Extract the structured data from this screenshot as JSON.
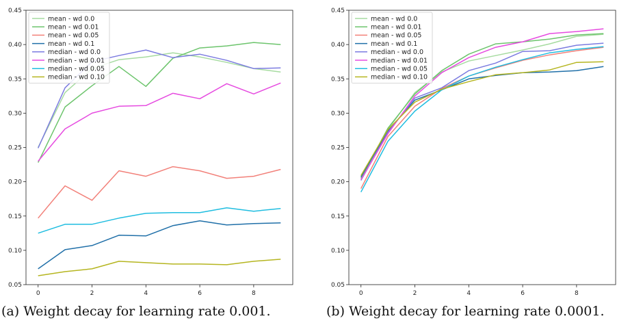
{
  "chart_data": [
    {
      "type": "line",
      "x": [
        0,
        1,
        2,
        3,
        4,
        5,
        6,
        7,
        8,
        9
      ],
      "ylim": [
        0.05,
        0.45
      ],
      "yticks": [
        "0.05",
        "0.10",
        "0.15",
        "0.20",
        "0.25",
        "0.30",
        "0.35",
        "0.40",
        "0.45"
      ],
      "xticks": [
        "0",
        "2",
        "4",
        "6",
        "8"
      ],
      "legend_position": "top-left",
      "series": [
        {
          "name": "mean - wd 0.0",
          "color": "#a6dba0",
          "values": [
            0.25,
            0.33,
            0.365,
            0.378,
            0.382,
            0.388,
            0.382,
            0.374,
            0.365,
            0.36
          ]
        },
        {
          "name": "mean - wd 0.01",
          "color": "#6cc46c",
          "values": [
            0.228,
            0.309,
            0.34,
            0.368,
            0.339,
            0.38,
            0.395,
            0.398,
            0.403,
            0.4
          ]
        },
        {
          "name": "mean - wd 0.05",
          "color": "#f28079",
          "values": [
            0.147,
            0.194,
            0.173,
            0.216,
            0.208,
            0.222,
            0.216,
            0.205,
            0.208,
            0.218
          ]
        },
        {
          "name": "mean - wd 0.1",
          "color": "#1f6fa8",
          "values": [
            0.073,
            0.101,
            0.107,
            0.122,
            0.121,
            0.136,
            0.143,
            0.137,
            0.139,
            0.14
          ]
        },
        {
          "name": "median - wd 0.0",
          "color": "#7b7be0",
          "values": [
            0.249,
            0.337,
            0.375,
            0.384,
            0.392,
            0.381,
            0.386,
            0.377,
            0.365,
            0.366
          ]
        },
        {
          "name": "median - wd 0.01",
          "color": "#e64be0",
          "values": [
            0.23,
            0.277,
            0.3,
            0.31,
            0.311,
            0.329,
            0.321,
            0.343,
            0.328,
            0.344
          ]
        },
        {
          "name": "median - wd 0.05",
          "color": "#1fbde0",
          "values": [
            0.125,
            0.138,
            0.138,
            0.147,
            0.154,
            0.155,
            0.155,
            0.162,
            0.157,
            0.161
          ]
        },
        {
          "name": "median - wd 0.10",
          "color": "#b5b51f",
          "values": [
            0.063,
            0.069,
            0.073,
            0.084,
            0.082,
            0.08,
            0.08,
            0.079,
            0.084,
            0.087
          ]
        }
      ],
      "caption": "(a) Weight decay for learning rate 0.001."
    },
    {
      "type": "line",
      "x": [
        0,
        1,
        2,
        3,
        4,
        5,
        6,
        7,
        8,
        9
      ],
      "ylim": [
        0.05,
        0.45
      ],
      "yticks": [
        "0.05",
        "0.10",
        "0.15",
        "0.20",
        "0.25",
        "0.30",
        "0.35",
        "0.40",
        "0.45"
      ],
      "xticks": [
        "0",
        "2",
        "4",
        "6",
        "8"
      ],
      "legend_position": "top-left",
      "series": [
        {
          "name": "mean - wd 0.0",
          "color": "#a6dba0",
          "values": [
            0.205,
            0.276,
            0.33,
            0.36,
            0.376,
            0.384,
            0.392,
            0.401,
            0.412,
            0.415
          ]
        },
        {
          "name": "mean - wd 0.01",
          "color": "#6cc46c",
          "values": [
            0.205,
            0.278,
            0.328,
            0.362,
            0.386,
            0.401,
            0.404,
            0.408,
            0.414,
            0.416
          ]
        },
        {
          "name": "mean - wd 0.05",
          "color": "#f28079",
          "values": [
            0.19,
            0.266,
            0.31,
            0.336,
            0.354,
            0.366,
            0.377,
            0.385,
            0.391,
            0.396
          ]
        },
        {
          "name": "mean - wd 0.1",
          "color": "#1f6fa8",
          "values": [
            0.207,
            0.274,
            0.319,
            0.334,
            0.35,
            0.355,
            0.359,
            0.36,
            0.362,
            0.368
          ]
        },
        {
          "name": "median - wd 0.0",
          "color": "#7b7be0",
          "values": [
            0.202,
            0.272,
            0.322,
            0.337,
            0.362,
            0.373,
            0.39,
            0.391,
            0.399,
            0.402
          ]
        },
        {
          "name": "median - wd 0.01",
          "color": "#e64be0",
          "values": [
            0.203,
            0.27,
            0.325,
            0.359,
            0.381,
            0.396,
            0.404,
            0.416,
            0.419,
            0.423
          ]
        },
        {
          "name": "median - wd 0.05",
          "color": "#1fbde0",
          "values": [
            0.185,
            0.259,
            0.303,
            0.334,
            0.354,
            0.367,
            0.378,
            0.388,
            0.393,
            0.397
          ]
        },
        {
          "name": "median - wd 0.10",
          "color": "#b5b51f",
          "values": [
            0.209,
            0.276,
            0.316,
            0.335,
            0.346,
            0.356,
            0.359,
            0.363,
            0.374,
            0.375
          ]
        }
      ],
      "caption": "(b) Weight decay for learning rate 0.0001."
    }
  ]
}
